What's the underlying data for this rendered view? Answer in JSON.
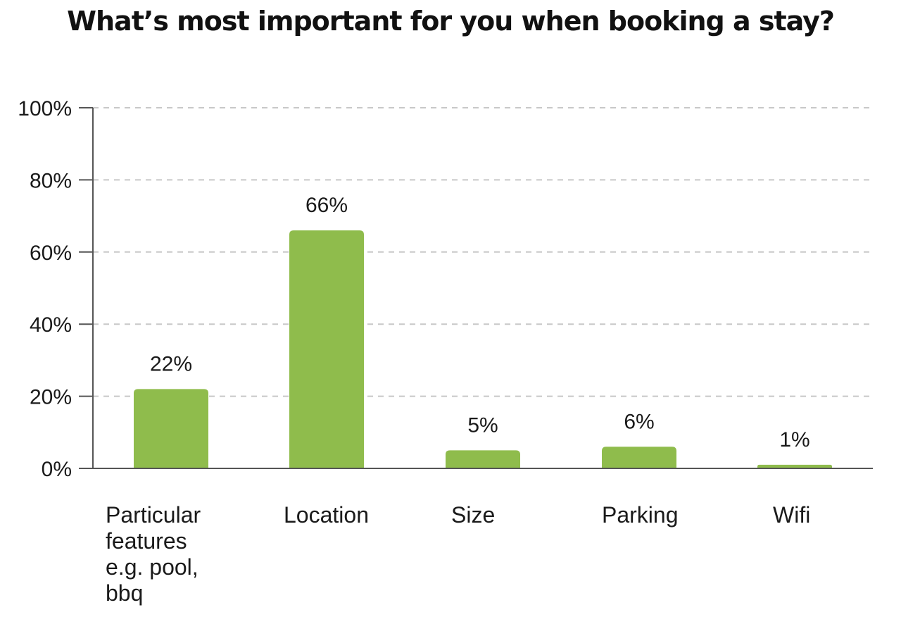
{
  "chart_data": {
    "type": "bar",
    "title": "What’s most important for you when booking a stay?",
    "xlabel": "",
    "ylabel": "",
    "categories": [
      "Particular features e.g. pool, bbq",
      "Location",
      "Size",
      "Parking",
      "Wifi"
    ],
    "category_lines": [
      [
        "Particular",
        "features",
        "e.g. pool,",
        "bbq"
      ],
      [
        "Location"
      ],
      [
        "Size"
      ],
      [
        "Parking"
      ],
      [
        "Wifi"
      ]
    ],
    "values": [
      22,
      66,
      5,
      6,
      1
    ],
    "data_labels": [
      "22%",
      "66%",
      "5%",
      "6%",
      "1%"
    ],
    "ylim": [
      0,
      100
    ],
    "yticks": [
      0,
      20,
      40,
      60,
      80,
      100
    ],
    "ytick_labels": [
      "0%",
      "20%",
      "40%",
      "60%",
      "80%",
      "100%"
    ],
    "grid": true,
    "legend": "none",
    "bar_color": "#8fbc4c"
  }
}
